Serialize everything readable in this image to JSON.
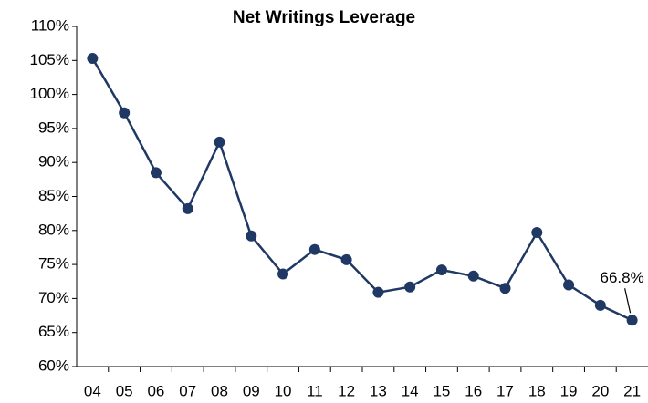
{
  "chart_data": {
    "type": "line",
    "title": "Net Writings Leverage",
    "categories": [
      "04",
      "05",
      "06",
      "07",
      "08",
      "09",
      "10",
      "11",
      "12",
      "13",
      "14",
      "15",
      "16",
      "17",
      "18",
      "19",
      "20",
      "21"
    ],
    "series": [
      {
        "name": "Net Writings Leverage",
        "color": "#1f3864",
        "values": [
          105.3,
          97.3,
          88.5,
          83.2,
          93.0,
          79.2,
          73.6,
          77.2,
          75.7,
          70.9,
          71.7,
          74.2,
          73.3,
          71.5,
          79.7,
          72.0,
          69.0,
          66.8
        ]
      }
    ],
    "value_labels": [
      null,
      null,
      null,
      null,
      null,
      null,
      null,
      null,
      null,
      null,
      null,
      null,
      null,
      null,
      null,
      null,
      null,
      "66.8%"
    ],
    "ylim": [
      60,
      110
    ],
    "yticks": [
      {
        "value": 60,
        "label": "60%"
      },
      {
        "value": 65,
        "label": "65%"
      },
      {
        "value": 70,
        "label": "70%"
      },
      {
        "value": 75,
        "label": "75%"
      },
      {
        "value": 80,
        "label": "80%"
      },
      {
        "value": 85,
        "label": "85%"
      },
      {
        "value": 90,
        "label": "90%"
      },
      {
        "value": 95,
        "label": "95%"
      },
      {
        "value": 100,
        "label": "100%"
      },
      {
        "value": 105,
        "label": "105%"
      },
      {
        "value": 110,
        "label": "110%"
      }
    ],
    "grid": false
  }
}
